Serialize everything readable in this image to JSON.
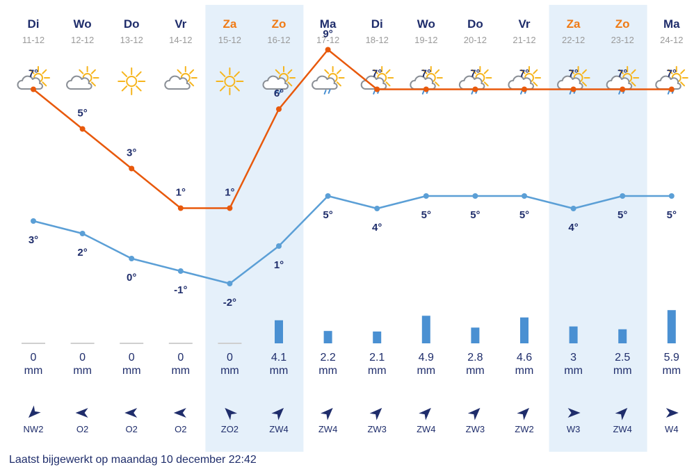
{
  "footer": {
    "updated": "Laatst bijgewerkt op maandag 10 december 22:42"
  },
  "colors": {
    "max_line": "#e8590c",
    "min_line": "#5b9fd6",
    "bar": "#4a90d2",
    "weekend_day": "#f07a14",
    "weekday": "#1f2d6b",
    "weekend_bg": "#e5f0fa",
    "sun": "#f6b51e",
    "cloud": "#8a8f96",
    "rain": "#4a90d2"
  },
  "chart_data": {
    "type": "line",
    "days": [
      {
        "name": "Di",
        "date": "11-12",
        "weekend": false,
        "icon": "sun-cloud-icon",
        "max": 7,
        "max_label": "7°",
        "min": 3,
        "min_label": "3°",
        "precip": 0,
        "precip_label": "0",
        "precip_unit": "mm",
        "wind_dir": "NW",
        "wind_label": "NW2",
        "wind_arrow_deg": 135
      },
      {
        "name": "Wo",
        "date": "12-12",
        "weekend": false,
        "icon": "sun-cloud-icon",
        "max": 5,
        "max_label": "5°",
        "min": 2,
        "min_label": "2°",
        "precip": 0,
        "precip_label": "0",
        "precip_unit": "mm",
        "wind_dir": "O",
        "wind_label": "O2",
        "wind_arrow_deg": 180
      },
      {
        "name": "Do",
        "date": "13-12",
        "weekend": false,
        "icon": "sun-icon",
        "max": 3,
        "max_label": "3°",
        "min": 0,
        "min_label": "0°",
        "precip": 0,
        "precip_label": "0",
        "precip_unit": "mm",
        "wind_dir": "O",
        "wind_label": "O2",
        "wind_arrow_deg": 180
      },
      {
        "name": "Vr",
        "date": "14-12",
        "weekend": false,
        "icon": "sun-cloud-icon",
        "max": 1,
        "max_label": "1°",
        "min": -1,
        "min_label": "-1°",
        "precip": 0,
        "precip_label": "0",
        "precip_unit": "mm",
        "wind_dir": "O",
        "wind_label": "O2",
        "wind_arrow_deg": 180
      },
      {
        "name": "Za",
        "date": "15-12",
        "weekend": true,
        "icon": "sun-icon",
        "max": 1,
        "max_label": "1°",
        "min": -2,
        "min_label": "-2°",
        "precip": 0,
        "precip_label": "0",
        "precip_unit": "mm",
        "wind_dir": "ZO",
        "wind_label": "ZO2",
        "wind_arrow_deg": 225
      },
      {
        "name": "Zo",
        "date": "16-12",
        "weekend": true,
        "icon": "sun-cloud-rain-icon",
        "max": 6,
        "max_label": "6°",
        "min": 1,
        "min_label": "1°",
        "precip": 4.1,
        "precip_label": "4.1",
        "precip_unit": "mm",
        "wind_dir": "ZW",
        "wind_label": "ZW4",
        "wind_arrow_deg": 315
      },
      {
        "name": "Ma",
        "date": "17-12",
        "weekend": false,
        "icon": "sun-cloud-rain-icon",
        "max": 9,
        "max_label": "9°",
        "min": 5,
        "min_label": "5°",
        "precip": 2.2,
        "precip_label": "2.2",
        "precip_unit": "mm",
        "wind_dir": "ZW",
        "wind_label": "ZW4",
        "wind_arrow_deg": 315
      },
      {
        "name": "Di",
        "date": "18-12",
        "weekend": false,
        "icon": "sun-cloud-rain-icon",
        "max": 7,
        "max_label": "7°",
        "min": 4,
        "min_label": "4°",
        "precip": 2.1,
        "precip_label": "2.1",
        "precip_unit": "mm",
        "wind_dir": "ZW",
        "wind_label": "ZW3",
        "wind_arrow_deg": 315
      },
      {
        "name": "Wo",
        "date": "19-12",
        "weekend": false,
        "icon": "sun-cloud-rain-icon",
        "max": 7,
        "max_label": "7°",
        "min": 5,
        "min_label": "5°",
        "precip": 4.9,
        "precip_label": "4.9",
        "precip_unit": "mm",
        "wind_dir": "ZW",
        "wind_label": "ZW4",
        "wind_arrow_deg": 315
      },
      {
        "name": "Do",
        "date": "20-12",
        "weekend": false,
        "icon": "sun-cloud-rain-icon",
        "max": 7,
        "max_label": "7°",
        "min": 5,
        "min_label": "5°",
        "precip": 2.8,
        "precip_label": "2.8",
        "precip_unit": "mm",
        "wind_dir": "ZW",
        "wind_label": "ZW3",
        "wind_arrow_deg": 315
      },
      {
        "name": "Vr",
        "date": "21-12",
        "weekend": false,
        "icon": "sun-cloud-rain-icon",
        "max": 7,
        "max_label": "7°",
        "min": 5,
        "min_label": "5°",
        "precip": 4.6,
        "precip_label": "4.6",
        "precip_unit": "mm",
        "wind_dir": "ZW",
        "wind_label": "ZW2",
        "wind_arrow_deg": 315
      },
      {
        "name": "Za",
        "date": "22-12",
        "weekend": true,
        "icon": "sun-cloud-rain-icon",
        "max": 7,
        "max_label": "7°",
        "min": 4,
        "min_label": "4°",
        "precip": 3,
        "precip_label": "3",
        "precip_unit": "mm",
        "wind_dir": "W",
        "wind_label": "W3",
        "wind_arrow_deg": 0
      },
      {
        "name": "Zo",
        "date": "23-12",
        "weekend": true,
        "icon": "sun-cloud-rain-icon",
        "max": 7,
        "max_label": "7°",
        "min": 5,
        "min_label": "5°",
        "precip": 2.5,
        "precip_label": "2.5",
        "precip_unit": "mm",
        "wind_dir": "ZW",
        "wind_label": "ZW4",
        "wind_arrow_deg": 315
      },
      {
        "name": "Ma",
        "date": "24-12",
        "weekend": false,
        "icon": "sun-cloud-rain-icon",
        "max": 7,
        "max_label": "7°",
        "min": 5,
        "min_label": "5°",
        "precip": 5.9,
        "precip_label": "5.9",
        "precip_unit": "mm",
        "wind_dir": "W",
        "wind_label": "W4",
        "wind_arrow_deg": 0
      }
    ]
  }
}
